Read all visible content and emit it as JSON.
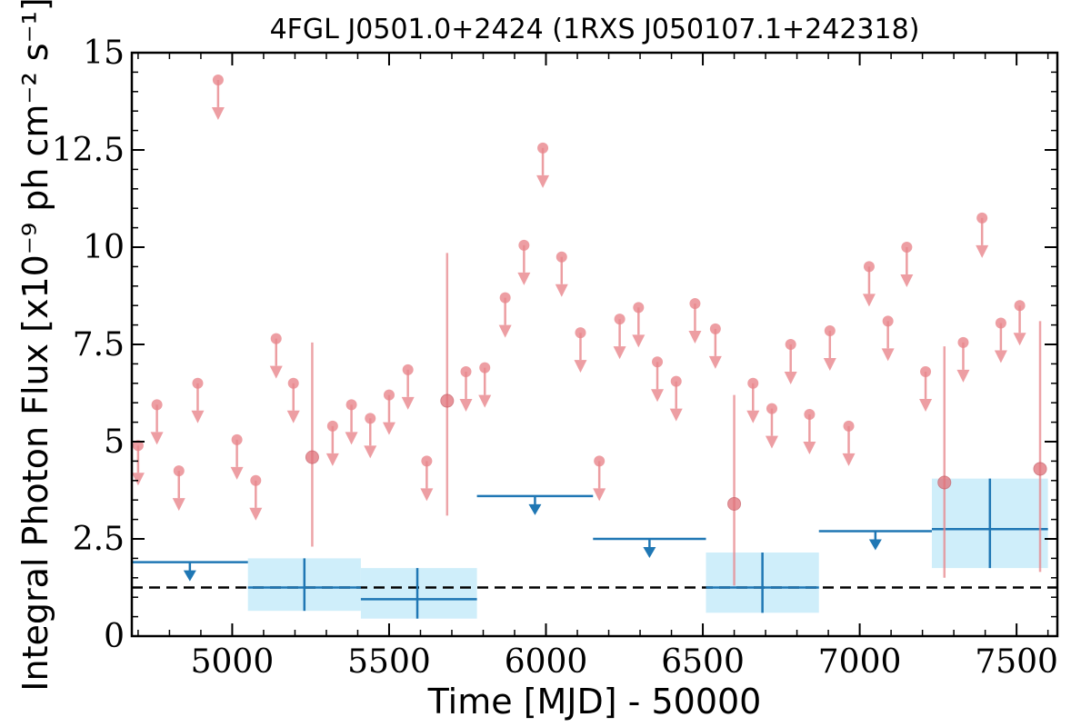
{
  "chart_data": {
    "type": "scatter",
    "title": "4FGL J0501.0+2424 (1RXS J050107.1+242318)",
    "xlabel": "Time [MJD] - 50000",
    "ylabel": "Integral Photon Flux [x10⁻⁹ ph cm⁻² s⁻¹]",
    "xlim": [
      4680,
      7630
    ],
    "ylim": [
      0,
      15
    ],
    "x_ticks": [
      5000,
      5500,
      6000,
      6500,
      7000,
      7500
    ],
    "y_ticks": [
      0,
      2.5,
      5,
      7.5,
      10,
      12.5,
      15
    ],
    "x_tick_labels": [
      "5000",
      "5500",
      "6000",
      "6500",
      "7000",
      "7500"
    ],
    "y_tick_labels": [
      "0",
      "2.5",
      "5",
      "7.5",
      "10",
      "12.5",
      "15"
    ],
    "grid": false,
    "colors": {
      "short_bins": "#e8868c",
      "long_bins": "#1f77b4",
      "long_bins_band": "#cfeefa",
      "reference_line": "#000000"
    },
    "reference_line": {
      "style": "dashed",
      "y": 1.25
    },
    "series": [
      {
        "bin": "short",
        "upper_limits": [
          [
            4700,
            4.9
          ],
          [
            4760,
            5.95
          ],
          [
            4830,
            4.25
          ],
          [
            4890,
            6.5
          ],
          [
            4955,
            14.3
          ],
          [
            5015,
            5.05
          ],
          [
            5075,
            4.0
          ],
          [
            5140,
            7.65
          ],
          [
            5195,
            6.5
          ],
          [
            5320,
            5.4
          ],
          [
            5380,
            5.95
          ],
          [
            5440,
            5.6
          ],
          [
            5500,
            6.2
          ],
          [
            5560,
            6.85
          ],
          [
            5620,
            4.5
          ],
          [
            5745,
            6.8
          ],
          [
            5805,
            6.9
          ],
          [
            5870,
            8.7
          ],
          [
            5930,
            10.05
          ],
          [
            5990,
            12.55
          ],
          [
            6050,
            9.75
          ],
          [
            6110,
            7.8
          ],
          [
            6170,
            4.5
          ],
          [
            6235,
            8.15
          ],
          [
            6295,
            8.45
          ],
          [
            6355,
            7.05
          ],
          [
            6415,
            6.55
          ],
          [
            6475,
            8.55
          ],
          [
            6540,
            7.9
          ],
          [
            6660,
            6.5
          ],
          [
            6720,
            5.85
          ],
          [
            6780,
            7.5
          ],
          [
            6840,
            5.7
          ],
          [
            6905,
            7.85
          ],
          [
            6965,
            5.4
          ],
          [
            7030,
            9.5
          ],
          [
            7090,
            8.1
          ],
          [
            7150,
            10.0
          ],
          [
            7210,
            6.8
          ],
          [
            7330,
            7.55
          ],
          [
            7390,
            10.75
          ],
          [
            7450,
            8.05
          ],
          [
            7510,
            8.5
          ]
        ],
        "detections": [
          {
            "x": 5255,
            "y": 4.6,
            "ylow": 2.3,
            "yhigh": 7.55
          },
          {
            "x": 5685,
            "y": 6.05,
            "ylow": 3.1,
            "yhigh": 9.85
          },
          {
            "x": 6600,
            "y": 3.4,
            "ylow": 1.3,
            "yhigh": 6.2
          },
          {
            "x": 7270,
            "y": 3.95,
            "ylow": 1.5,
            "yhigh": 7.45
          },
          {
            "x": 7575,
            "y": 4.3,
            "ylow": 1.65,
            "yhigh": 8.1
          }
        ]
      },
      {
        "bin": "long",
        "upper_limits": [
          {
            "x0": 4680,
            "x1": 5050,
            "y": 1.9
          },
          {
            "x0": 5780,
            "x1": 6150,
            "y": 3.6
          },
          {
            "x0": 6150,
            "x1": 6510,
            "y": 2.5
          },
          {
            "x0": 6870,
            "x1": 7230,
            "y": 2.7
          }
        ],
        "detections": [
          {
            "x": 5230,
            "x0": 5050,
            "x1": 5410,
            "y": 1.25,
            "ylow": 0.65,
            "yhigh": 2.0
          },
          {
            "x": 5590,
            "x0": 5410,
            "x1": 5780,
            "y": 0.95,
            "ylow": 0.45,
            "yhigh": 1.75
          },
          {
            "x": 6690,
            "x0": 6510,
            "x1": 6870,
            "y": 1.25,
            "ylow": 0.6,
            "yhigh": 2.15
          },
          {
            "x": 7415,
            "x0": 7230,
            "x1": 7600,
            "y": 2.75,
            "ylow": 1.75,
            "yhigh": 4.05
          }
        ]
      }
    ]
  }
}
